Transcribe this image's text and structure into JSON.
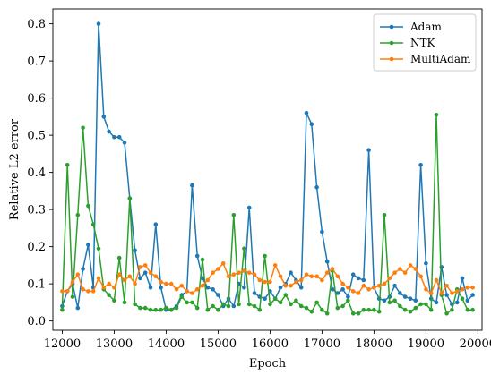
{
  "chart_data": {
    "type": "line",
    "title": "",
    "xlabel": "Epoch",
    "ylabel": "Relative L2 error",
    "xlim": [
      11820,
      20080
    ],
    "ylim": [
      -0.025,
      0.84
    ],
    "xticks": [
      12000,
      13000,
      14000,
      15000,
      16000,
      17000,
      18000,
      19000,
      20000
    ],
    "yticks": [
      0.0,
      0.1,
      0.2,
      0.3,
      0.4,
      0.5,
      0.6,
      0.7,
      0.8
    ],
    "xtick_labels": [
      "12000",
      "13000",
      "14000",
      "15000",
      "16000",
      "17000",
      "18000",
      "19000",
      "20000"
    ],
    "ytick_labels": [
      "0.0",
      "0.1",
      "0.2",
      "0.3",
      "0.4",
      "0.5",
      "0.6",
      "0.7",
      "0.8"
    ],
    "grid": false,
    "legend_position": "top-right",
    "series": [
      {
        "name": "Adam",
        "color": "#1f77b4",
        "x": [
          12000,
          12100,
          12200,
          12300,
          12400,
          12500,
          12600,
          12700,
          12800,
          12900,
          13000,
          13100,
          13200,
          13300,
          13400,
          13500,
          13600,
          13700,
          13800,
          13900,
          14000,
          14100,
          14200,
          14300,
          14400,
          14500,
          14600,
          14700,
          14800,
          14900,
          15000,
          15100,
          15200,
          15300,
          15400,
          15500,
          15600,
          15700,
          15800,
          15900,
          16000,
          16100,
          16200,
          16300,
          16400,
          16500,
          16600,
          16700,
          16800,
          16900,
          17000,
          17100,
          17200,
          17300,
          17400,
          17500,
          17600,
          17700,
          17800,
          17900,
          18000,
          18100,
          18200,
          18300,
          18400,
          18500,
          18600,
          18700,
          18800,
          18900,
          19000,
          19100,
          19200,
          19300,
          19400,
          19500,
          19600,
          19700,
          19800,
          19900
        ],
        "values": [
          0.04,
          0.08,
          0.1,
          0.035,
          0.14,
          0.205,
          0.09,
          0.8,
          0.55,
          0.51,
          0.495,
          0.495,
          0.48,
          0.33,
          0.19,
          0.115,
          0.13,
          0.09,
          0.26,
          0.09,
          0.03,
          0.03,
          0.04,
          0.07,
          0.08,
          0.365,
          0.175,
          0.115,
          0.09,
          0.085,
          0.07,
          0.04,
          0.06,
          0.04,
          0.1,
          0.09,
          0.305,
          0.075,
          0.065,
          0.06,
          0.08,
          0.06,
          0.09,
          0.1,
          0.13,
          0.11,
          0.09,
          0.56,
          0.53,
          0.36,
          0.24,
          0.16,
          0.085,
          0.075,
          0.085,
          0.065,
          0.125,
          0.115,
          0.11,
          0.46,
          0.09,
          0.06,
          0.055,
          0.065,
          0.095,
          0.075,
          0.065,
          0.06,
          0.055,
          0.42,
          0.155,
          0.06,
          0.05,
          0.145,
          0.07,
          0.045,
          0.05,
          0.115,
          0.055,
          0.07
        ]
      },
      {
        "name": "NTK",
        "color": "#2ca02c",
        "x": [
          12000,
          12100,
          12200,
          12300,
          12400,
          12500,
          12600,
          12700,
          12800,
          12900,
          13000,
          13100,
          13200,
          13300,
          13400,
          13500,
          13600,
          13700,
          13800,
          13900,
          14000,
          14100,
          14200,
          14300,
          14400,
          14500,
          14600,
          14700,
          14800,
          14900,
          15000,
          15100,
          15200,
          15300,
          15400,
          15500,
          15600,
          15700,
          15800,
          15900,
          16000,
          16100,
          16200,
          16300,
          16400,
          16500,
          16600,
          16700,
          16800,
          16900,
          17000,
          17100,
          17200,
          17300,
          17400,
          17500,
          17600,
          17700,
          17800,
          17900,
          18000,
          18100,
          18200,
          18300,
          18400,
          18500,
          18600,
          18700,
          18800,
          18900,
          19000,
          19100,
          19200,
          19300,
          19400,
          19500,
          19600,
          19700,
          19800,
          19900
        ],
        "values": [
          0.03,
          0.42,
          0.065,
          0.285,
          0.52,
          0.31,
          0.26,
          0.195,
          0.085,
          0.07,
          0.055,
          0.17,
          0.05,
          0.33,
          0.045,
          0.035,
          0.035,
          0.03,
          0.03,
          0.03,
          0.035,
          0.03,
          0.035,
          0.065,
          0.05,
          0.05,
          0.035,
          0.165,
          0.03,
          0.04,
          0.03,
          0.045,
          0.04,
          0.285,
          0.045,
          0.195,
          0.045,
          0.04,
          0.03,
          0.175,
          0.045,
          0.06,
          0.05,
          0.07,
          0.045,
          0.055,
          0.04,
          0.035,
          0.025,
          0.05,
          0.03,
          0.02,
          0.135,
          0.035,
          0.04,
          0.055,
          0.02,
          0.02,
          0.03,
          0.03,
          0.03,
          0.025,
          0.285,
          0.05,
          0.055,
          0.04,
          0.03,
          0.025,
          0.035,
          0.045,
          0.045,
          0.03,
          0.555,
          0.07,
          0.02,
          0.03,
          0.085,
          0.06,
          0.03,
          0.03
        ]
      },
      {
        "name": "MultiAdam",
        "color": "#ff7f0e",
        "x": [
          12000,
          12100,
          12200,
          12300,
          12400,
          12500,
          12600,
          12700,
          12800,
          12900,
          13000,
          13100,
          13200,
          13300,
          13400,
          13500,
          13600,
          13700,
          13800,
          13900,
          14000,
          14100,
          14200,
          14300,
          14400,
          14500,
          14600,
          14700,
          14800,
          14900,
          15000,
          15100,
          15200,
          15300,
          15400,
          15500,
          15600,
          15700,
          15800,
          15900,
          16000,
          16100,
          16200,
          16300,
          16400,
          16500,
          16600,
          16700,
          16800,
          16900,
          17000,
          17100,
          17200,
          17300,
          17400,
          17500,
          17600,
          17700,
          17800,
          17900,
          18000,
          18100,
          18200,
          18300,
          18400,
          18500,
          18600,
          18700,
          18800,
          18900,
          19000,
          19100,
          19200,
          19300,
          19400,
          19500,
          19600,
          19700,
          19800,
          19900
        ],
        "values": [
          0.08,
          0.08,
          0.105,
          0.125,
          0.085,
          0.08,
          0.08,
          0.115,
          0.09,
          0.1,
          0.09,
          0.125,
          0.11,
          0.12,
          0.1,
          0.145,
          0.15,
          0.13,
          0.12,
          0.105,
          0.1,
          0.1,
          0.085,
          0.095,
          0.08,
          0.075,
          0.085,
          0.095,
          0.11,
          0.13,
          0.14,
          0.155,
          0.12,
          0.125,
          0.13,
          0.135,
          0.13,
          0.125,
          0.11,
          0.105,
          0.105,
          0.15,
          0.12,
          0.095,
          0.095,
          0.105,
          0.11,
          0.125,
          0.12,
          0.12,
          0.11,
          0.13,
          0.14,
          0.12,
          0.1,
          0.09,
          0.08,
          0.075,
          0.095,
          0.085,
          0.09,
          0.095,
          0.1,
          0.115,
          0.13,
          0.14,
          0.13,
          0.15,
          0.14,
          0.12,
          0.085,
          0.075,
          0.11,
          0.075,
          0.095,
          0.075,
          0.08,
          0.085,
          0.09,
          0.09
        ]
      }
    ]
  }
}
